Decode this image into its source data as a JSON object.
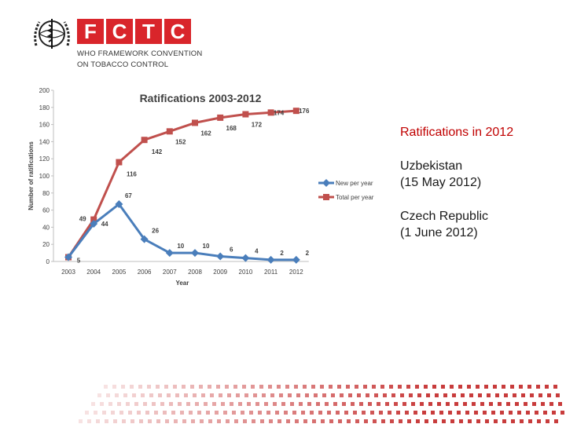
{
  "header": {
    "logo_letters": [
      "F",
      "C",
      "T",
      "C"
    ],
    "subtitle_line1": "WHO FRAMEWORK CONVENTION",
    "subtitle_line2": "ON TOBACCO CONTROL",
    "brand_color": "#d9252b",
    "emblem_icon": "who-emblem-icon"
  },
  "chart_data": {
    "type": "line",
    "title": "Ratifications 2003-2012",
    "xlabel": "Year",
    "ylabel": "Number of ratifications",
    "categories": [
      "2003",
      "2004",
      "2005",
      "2006",
      "2007",
      "2008",
      "2009",
      "2010",
      "2011",
      "2012"
    ],
    "ylim": [
      0,
      200
    ],
    "yticks": [
      0,
      20,
      40,
      60,
      80,
      100,
      120,
      140,
      160,
      180,
      200
    ],
    "grid": false,
    "legend_position": "right",
    "series": [
      {
        "name": "New per year",
        "color": "#4a7ebb",
        "marker": "diamond",
        "values": [
          5,
          44,
          67,
          26,
          10,
          10,
          6,
          4,
          2,
          2
        ]
      },
      {
        "name": "Total per year",
        "color": "#c0504d",
        "marker": "square",
        "values": [
          5,
          49,
          116,
          142,
          152,
          162,
          168,
          172,
          174,
          176
        ]
      }
    ]
  },
  "side": {
    "heading": "Ratifications in 2012",
    "items": [
      {
        "line1": "Uzbekistan",
        "line2": "(15 May 2012)"
      },
      {
        "line1": "Czech Republic",
        "line2": "(1 June 2012)"
      }
    ]
  }
}
